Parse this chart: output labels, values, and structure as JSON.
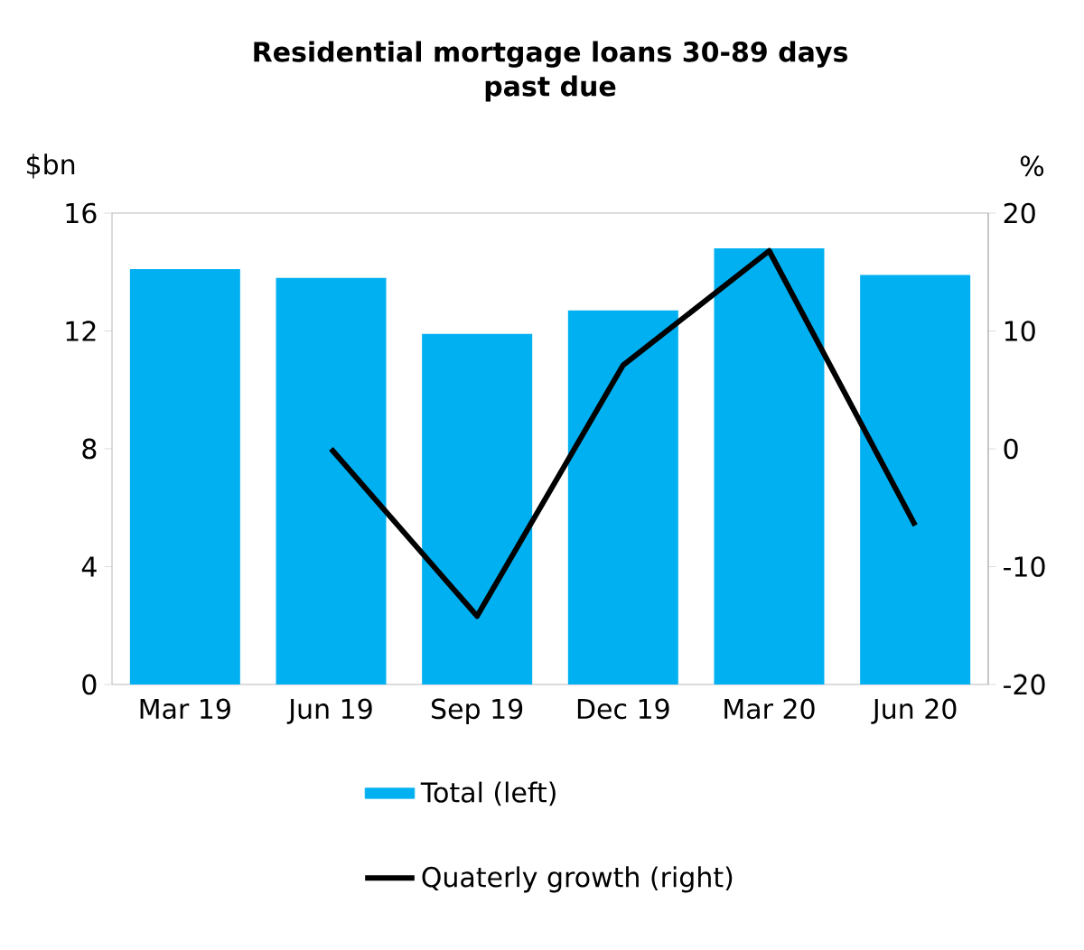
{
  "chart_data": {
    "type": "bar",
    "title": "Residential mortgage loans 30-89 days\npast due",
    "categories": [
      "Mar 19",
      "Jun 19",
      "Sep 19",
      "Dec 19",
      "Mar 20",
      "Jun 20"
    ],
    "series": [
      {
        "name": "Total (left)",
        "color": "#00b0f0",
        "values": [
          14.1,
          13.8,
          11.9,
          12.7,
          14.8,
          13.9
        ]
      },
      {
        "name": "Quaterly growth (right)",
        "type": "line",
        "axis": "y2",
        "color": "#000000",
        "marker": "none",
        "values": [
          null,
          0,
          -14.2,
          7.1,
          16.8,
          -6.5
        ]
      }
    ],
    "ylabel": "$bn",
    "y2label": "%",
    "ylim": [
      0,
      16
    ],
    "yticks": [
      0,
      4,
      8,
      12,
      16
    ],
    "y2lim": [
      -20,
      20
    ],
    "y2ticks": [
      -20,
      -10,
      0,
      10,
      20
    ],
    "legend": "bottom"
  }
}
